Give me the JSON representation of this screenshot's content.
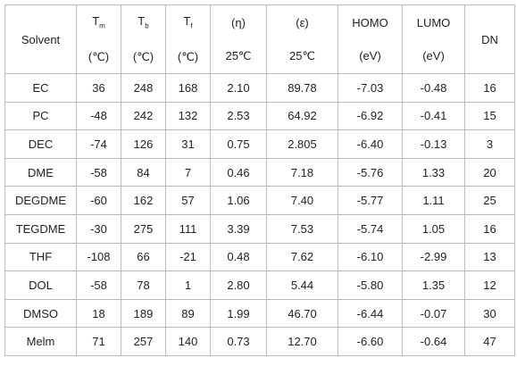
{
  "table": {
    "header": [
      {
        "label": "Solvent"
      },
      {
        "symbol": "T",
        "sub": "m",
        "unit": "(℃)"
      },
      {
        "symbol": "T",
        "sub": "b",
        "unit": "(℃)"
      },
      {
        "symbol": "T",
        "sub": "f",
        "unit": "(℃)"
      },
      {
        "symbol": "(η)",
        "unit": "25℃"
      },
      {
        "symbol": "(ε)",
        "unit": "25℃"
      },
      {
        "symbol": "HOMO",
        "unit": "(eV)"
      },
      {
        "symbol": "LUMO",
        "unit": "(eV)"
      },
      {
        "label": "DN"
      }
    ],
    "rows": [
      [
        "EC",
        "36",
        "248",
        "168",
        "2.10",
        "89.78",
        "-7.03",
        "-0.48",
        "16"
      ],
      [
        "PC",
        "-48",
        "242",
        "132",
        "2.53",
        "64.92",
        "-6.92",
        "-0.41",
        "15"
      ],
      [
        "DEC",
        "-74",
        "126",
        "31",
        "0.75",
        "2.805",
        "-6.40",
        "-0.13",
        "3"
      ],
      [
        "DME",
        "-58",
        "84",
        "7",
        "0.46",
        "7.18",
        "-5.76",
        "1.33",
        "20"
      ],
      [
        "DEGDME",
        "-60",
        "162",
        "57",
        "1.06",
        "7.40",
        "-5.77",
        "1.11",
        "25"
      ],
      [
        "TEGDME",
        "-30",
        "275",
        "111",
        "3.39",
        "7.53",
        "-5.74",
        "1.05",
        "16"
      ],
      [
        "THF",
        "-108",
        "66",
        "-21",
        "0.48",
        "7.62",
        "-6.10",
        "-2.99",
        "13"
      ],
      [
        "DOL",
        "-58",
        "78",
        "1",
        "2.80",
        "5.44",
        "-5.80",
        "1.35",
        "12"
      ],
      [
        "DMSO",
        "18",
        "189",
        "89",
        "1.99",
        "46.70",
        "-6.44",
        "-0.07",
        "30"
      ],
      [
        "Melm",
        "71",
        "257",
        "140",
        "0.73",
        "12.70",
        "-6.60",
        "-0.64",
        "47"
      ]
    ]
  }
}
